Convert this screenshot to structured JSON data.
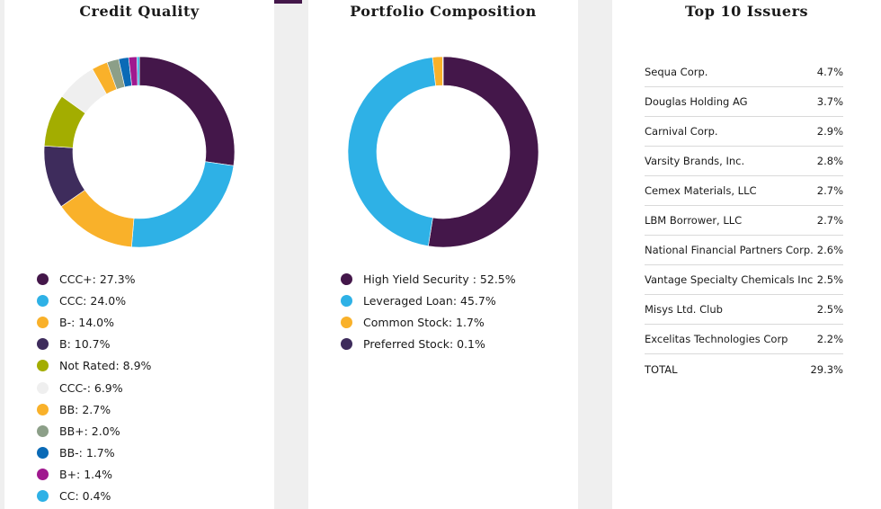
{
  "panels": {
    "credit_quality": {
      "title": "Credit Quality"
    },
    "portfolio_composition": {
      "title": "Portfolio Composition"
    },
    "top_issuers": {
      "title": "Top 10 Issuers"
    }
  },
  "colors": {
    "accent": "#44174a",
    "panel_bg": "#ffffff",
    "page_bg": "#efefef"
  },
  "chart_data": [
    {
      "type": "pie",
      "title": "Credit Quality",
      "slices": [
        {
          "name": "CCC+",
          "value": 27.3,
          "color": "#44174a",
          "legend": "CCC+: 27.3%"
        },
        {
          "name": "CCC",
          "value": 24.0,
          "color": "#2eb1e6",
          "legend": "CCC: 24.0%"
        },
        {
          "name": "B-",
          "value": 14.0,
          "color": "#f9b12a",
          "legend": "B-: 14.0%"
        },
        {
          "name": "B",
          "value": 10.7,
          "color": "#3e2c5c",
          "legend": "B: 10.7%"
        },
        {
          "name": "Not Rated",
          "value": 8.9,
          "color": "#a3ad00",
          "legend": "Not Rated: 8.9%"
        },
        {
          "name": "CCC-",
          "value": 6.9,
          "color": "#efefef",
          "legend": "CCC-: 6.9%"
        },
        {
          "name": "BB",
          "value": 2.7,
          "color": "#f9b12a",
          "legend": "BB: 2.7%"
        },
        {
          "name": "BB+",
          "value": 2.0,
          "color": "#8c9f88",
          "legend": "BB+: 2.0%"
        },
        {
          "name": "BB-",
          "value": 1.7,
          "color": "#0a6ab6",
          "legend": "BB-: 1.7%"
        },
        {
          "name": "B+",
          "value": 1.4,
          "color": "#a0198f",
          "legend": "B+: 1.4%"
        },
        {
          "name": "CC",
          "value": 0.4,
          "color": "#2eb1e6",
          "legend": "CC: 0.4%"
        }
      ]
    },
    {
      "type": "pie",
      "title": "Portfolio Composition",
      "slices": [
        {
          "name": "High Yield Security",
          "value": 52.5,
          "color": "#44174a",
          "legend": "High Yield Security : 52.5%"
        },
        {
          "name": "Leveraged Loan",
          "value": 45.7,
          "color": "#2eb1e6",
          "legend": "Leveraged Loan: 45.7%"
        },
        {
          "name": "Common Stock",
          "value": 1.7,
          "color": "#f9b12a",
          "legend": "Common Stock: 1.7%"
        },
        {
          "name": "Preferred Stock",
          "value": 0.1,
          "color": "#3e2c5c",
          "legend": "Preferred Stock: 0.1%"
        }
      ]
    },
    {
      "type": "table",
      "title": "Top 10 Issuers",
      "rows": [
        {
          "name": "Sequa Corp.",
          "value": "4.7%"
        },
        {
          "name": "Douglas Holding AG",
          "value": "3.7%"
        },
        {
          "name": "Carnival Corp.",
          "value": "2.9%"
        },
        {
          "name": "Varsity Brands, Inc.",
          "value": "2.8%"
        },
        {
          "name": "Cemex Materials, LLC",
          "value": "2.7%"
        },
        {
          "name": "LBM Borrower, LLC",
          "value": "2.7%"
        },
        {
          "name": "National Financial Partners Corp.",
          "value": "2.6%"
        },
        {
          "name": "Vantage Specialty Chemicals Inc",
          "value": "2.5%"
        },
        {
          "name": "Misys Ltd. Club",
          "value": "2.5%"
        },
        {
          "name": "Excelitas Technologies Corp",
          "value": "2.2%"
        }
      ],
      "total": {
        "name": "TOTAL",
        "value": "29.3%"
      }
    }
  ]
}
